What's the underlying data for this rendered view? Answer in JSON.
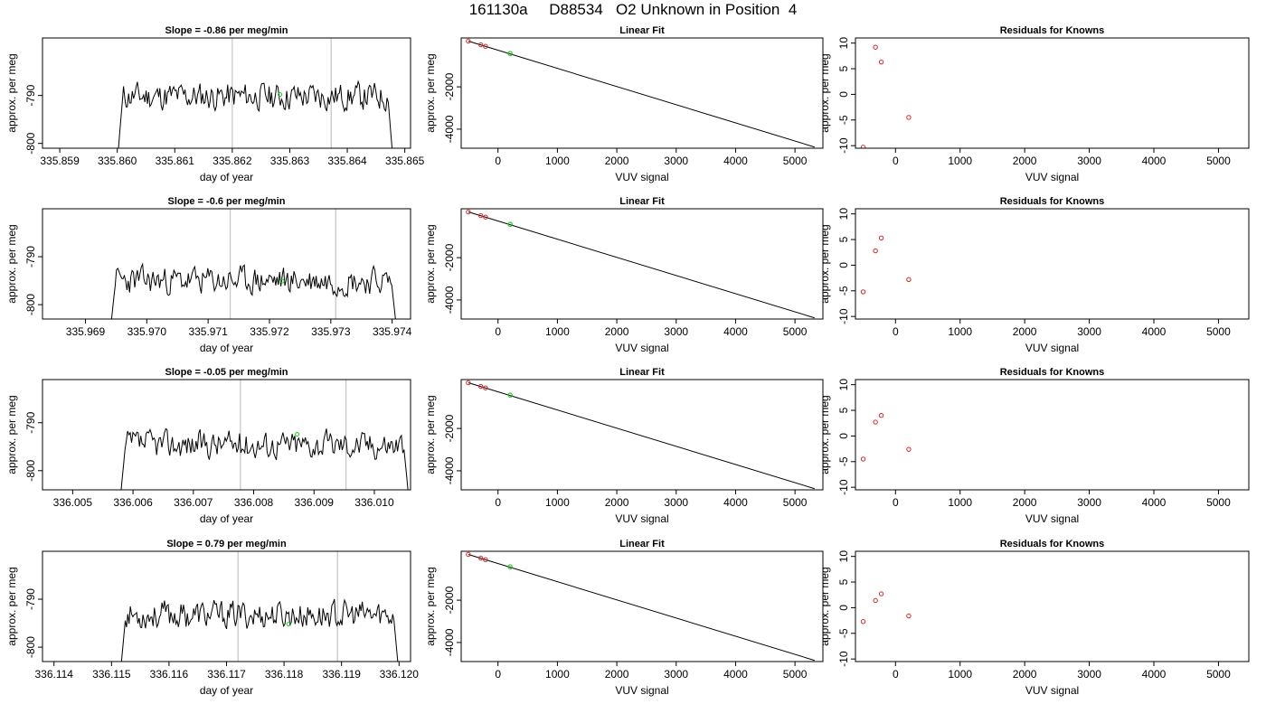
{
  "figure": {
    "title": "161130a     D88534   O2 Unknown in Position  4"
  },
  "colors": {
    "line": "#000000",
    "known": "#d62728",
    "unknown": "#22cc22",
    "marker_line": "#c8c8c8"
  },
  "chart_data": [
    {
      "type": "line",
      "title": "Slope =  -0.86  per meg/min",
      "xlabel": "day of year",
      "ylabel": "approx. per meg",
      "xlim": [
        335.8587,
        335.8651
      ],
      "ylim": [
        -801,
        -778
      ],
      "xticks": [
        "335.859",
        "335.860",
        "335.861",
        "335.862",
        "335.863",
        "335.864",
        "335.865"
      ],
      "xtick_values": [
        335.859,
        335.86,
        335.861,
        335.862,
        335.863,
        335.864,
        335.865
      ],
      "yticks": [
        "-790",
        "-800"
      ],
      "ytick_values": [
        -790,
        -800
      ],
      "signal": {
        "start": 335.86,
        "end": 335.8648,
        "level": -790.2,
        "seed": 11
      },
      "vlines": [
        335.862,
        335.86372
      ],
      "unknown_point": {
        "x": 335.86283,
        "y": -789.8
      }
    },
    {
      "type": "scatter",
      "title": "Linear Fit",
      "xlabel": "VUV signal",
      "ylabel": "approx. per meg",
      "xlim": [
        -620,
        5470
      ],
      "ylim": [
        -4900,
        310
      ],
      "xticks": [
        "0",
        "1000",
        "2000",
        "3000",
        "4000",
        "5000"
      ],
      "xtick_values": [
        0,
        1000,
        2000,
        3000,
        4000,
        5000
      ],
      "yticks": [
        "-2000",
        "-4000"
      ],
      "ytick_values": [
        -2000,
        -4000
      ],
      "fit_line": {
        "x": [
          -500,
          5330
        ],
        "y": [
          161,
          -4845
        ]
      },
      "knowns": {
        "x": [
          -500,
          -290,
          -210
        ],
        "y": [
          161,
          -12,
          -85
        ]
      },
      "unknown": {
        "x": 205,
        "y": -425
      }
    },
    {
      "type": "scatter",
      "title": "Residuals for Knowns",
      "xlabel": "VUV signal",
      "ylabel": "approx. per meg",
      "xlim": [
        -620,
        5470
      ],
      "ylim": [
        -10.5,
        11
      ],
      "xticks": [
        "0",
        "1000",
        "2000",
        "3000",
        "4000",
        "5000"
      ],
      "xtick_values": [
        0,
        1000,
        2000,
        3000,
        4000,
        5000
      ],
      "yticks": [
        "-10",
        "-5",
        "0",
        "5",
        "10"
      ],
      "ytick_values": [
        -10,
        -5,
        0,
        5,
        10
      ],
      "residuals": {
        "x": [
          -500,
          -310,
          -220,
          205
        ],
        "y": [
          -10.3,
          9.2,
          6.3,
          -4.5
        ]
      }
    },
    {
      "type": "line",
      "title": "Slope =  -0.6  per meg/min",
      "xlabel": "day of year",
      "ylabel": "approx. per meg",
      "xlim": [
        335.9683,
        335.9743
      ],
      "ylim": [
        -803,
        -780
      ],
      "xticks": [
        "335.969",
        "335.970",
        "335.971",
        "335.972",
        "335.973",
        "335.974"
      ],
      "xtick_values": [
        335.969,
        335.97,
        335.971,
        335.972,
        335.973,
        335.974
      ],
      "yticks": [
        "-790",
        "-800"
      ],
      "ytick_values": [
        -790,
        -800
      ],
      "signal": {
        "start": 335.9694,
        "end": 335.97408,
        "level": -795,
        "seed": 23
      },
      "vlines": [
        335.97136,
        335.97308
      ],
      "unknown_point": {
        "x": 335.97221,
        "y": -795.1
      }
    },
    {
      "type": "scatter",
      "title": "Linear Fit",
      "xlabel": "VUV signal",
      "ylabel": "approx. per meg",
      "xlim": [
        -620,
        5470
      ],
      "ylim": [
        -4900,
        310
      ],
      "xticks": [
        "0",
        "1000",
        "2000",
        "3000",
        "4000",
        "5000"
      ],
      "xtick_values": [
        0,
        1000,
        2000,
        3000,
        4000,
        5000
      ],
      "yticks": [
        "-2000",
        "-4000"
      ],
      "ytick_values": [
        -2000,
        -4000
      ],
      "fit_line": {
        "x": [
          -500,
          5330
        ],
        "y": [
          161,
          -4845
        ]
      },
      "knowns": {
        "x": [
          -500,
          -290,
          -210
        ],
        "y": [
          161,
          -12,
          -85
        ]
      },
      "unknown": {
        "x": 205,
        "y": -425
      }
    },
    {
      "type": "scatter",
      "title": "Residuals for Knowns",
      "xlabel": "VUV signal",
      "ylabel": "approx. per meg",
      "xlim": [
        -620,
        5470
      ],
      "ylim": [
        -10.5,
        11
      ],
      "xticks": [
        "0",
        "1000",
        "2000",
        "3000",
        "4000",
        "5000"
      ],
      "xtick_values": [
        0,
        1000,
        2000,
        3000,
        4000,
        5000
      ],
      "yticks": [
        "-10",
        "-5",
        "0",
        "5",
        "10"
      ],
      "ytick_values": [
        -10,
        -5,
        0,
        5,
        10
      ],
      "residuals": {
        "x": [
          -500,
          -310,
          -220,
          205
        ],
        "y": [
          -5.2,
          2.8,
          5.3,
          -2.8
        ]
      }
    },
    {
      "type": "line",
      "title": "Slope =  -0.05  per meg/min",
      "xlabel": "day of year",
      "ylabel": "approx. per meg",
      "xlim": [
        336.0045,
        336.0106
      ],
      "ylim": [
        -804,
        -781
      ],
      "xticks": [
        "336.005",
        "336.006",
        "336.007",
        "336.008",
        "336.009",
        "336.010"
      ],
      "xtick_values": [
        336.005,
        336.006,
        336.007,
        336.008,
        336.009,
        336.01
      ],
      "yticks": [
        "-790",
        "-800"
      ],
      "ytick_values": [
        -790,
        -800
      ],
      "signal": {
        "start": 336.00578,
        "end": 336.01058,
        "level": -794.5,
        "seed": 37
      },
      "vlines": [
        336.00778,
        336.00953
      ],
      "unknown_point": {
        "x": 336.00872,
        "y": -792.4
      }
    },
    {
      "type": "scatter",
      "title": "Linear Fit",
      "xlabel": "VUV signal",
      "ylabel": "approx. per meg",
      "xlim": [
        -620,
        5470
      ],
      "ylim": [
        -4900,
        310
      ],
      "xticks": [
        "0",
        "1000",
        "2000",
        "3000",
        "4000",
        "5000"
      ],
      "xtick_values": [
        0,
        1000,
        2000,
        3000,
        4000,
        5000
      ],
      "yticks": [
        "-2000",
        "-4000"
      ],
      "ytick_values": [
        -2000,
        -4000
      ],
      "fit_line": {
        "x": [
          -500,
          5330
        ],
        "y": [
          161,
          -4845
        ]
      },
      "knowns": {
        "x": [
          -500,
          -290,
          -210
        ],
        "y": [
          161,
          -12,
          -85
        ]
      },
      "unknown": {
        "x": 205,
        "y": -425
      }
    },
    {
      "type": "scatter",
      "title": "Residuals for Knowns",
      "xlabel": "VUV signal",
      "ylabel": "approx. per meg",
      "xlim": [
        -620,
        5470
      ],
      "ylim": [
        -10.5,
        11
      ],
      "xticks": [
        "0",
        "1000",
        "2000",
        "3000",
        "4000",
        "5000"
      ],
      "xtick_values": [
        0,
        1000,
        2000,
        3000,
        4000,
        5000
      ],
      "yticks": [
        "-10",
        "-5",
        "0",
        "5",
        "10"
      ],
      "ytick_values": [
        -10,
        -5,
        0,
        5,
        10
      ],
      "residuals": {
        "x": [
          -500,
          -310,
          -220,
          205
        ],
        "y": [
          -4.5,
          2.7,
          4.0,
          -2.6
        ]
      }
    },
    {
      "type": "line",
      "title": "Slope =  0.79  per meg/min",
      "xlabel": "day of year",
      "ylabel": "approx. per meg",
      "xlim": [
        336.1138,
        336.1202
      ],
      "ylim": [
        -803,
        -780
      ],
      "xticks": [
        "336.114",
        "336.115",
        "336.116",
        "336.117",
        "336.118",
        "336.119",
        "336.120"
      ],
      "xtick_values": [
        336.114,
        336.115,
        336.116,
        336.117,
        336.118,
        336.119,
        336.12
      ],
      "yticks": [
        "-790",
        "-800"
      ],
      "ytick_values": [
        -790,
        -800
      ],
      "signal": {
        "start": 336.11515,
        "end": 336.12,
        "level": -793.3,
        "seed": 53
      },
      "vlines": [
        336.1172,
        336.11893
      ],
      "unknown_point": {
        "x": 336.11808,
        "y": -795.2
      }
    },
    {
      "type": "scatter",
      "title": "Linear Fit",
      "xlabel": "VUV signal",
      "ylabel": "approx. per meg",
      "xlim": [
        -620,
        5470
      ],
      "ylim": [
        -4900,
        310
      ],
      "xticks": [
        "0",
        "1000",
        "2000",
        "3000",
        "4000",
        "5000"
      ],
      "xtick_values": [
        0,
        1000,
        2000,
        3000,
        4000,
        5000
      ],
      "yticks": [
        "-2000",
        "-4000"
      ],
      "ytick_values": [
        -2000,
        -4000
      ],
      "fit_line": {
        "x": [
          -500,
          5330
        ],
        "y": [
          161,
          -4845
        ]
      },
      "knowns": {
        "x": [
          -500,
          -290,
          -210
        ],
        "y": [
          161,
          -12,
          -85
        ]
      },
      "unknown": {
        "x": 205,
        "y": -425
      }
    },
    {
      "type": "scatter",
      "title": "Residuals for Knowns",
      "xlabel": "VUV signal",
      "ylabel": "approx. per meg",
      "xlim": [
        -620,
        5470
      ],
      "ylim": [
        -10.5,
        11
      ],
      "xticks": [
        "0",
        "1000",
        "2000",
        "3000",
        "4000",
        "5000"
      ],
      "xtick_values": [
        0,
        1000,
        2000,
        3000,
        4000,
        5000
      ],
      "yticks": [
        "-10",
        "-5",
        "0",
        "5",
        "10"
      ],
      "ytick_values": [
        -10,
        -5,
        0,
        5,
        10
      ],
      "residuals": {
        "x": [
          -500,
          -310,
          -220,
          205
        ],
        "y": [
          -2.7,
          1.4,
          2.7,
          -1.6
        ]
      }
    }
  ]
}
